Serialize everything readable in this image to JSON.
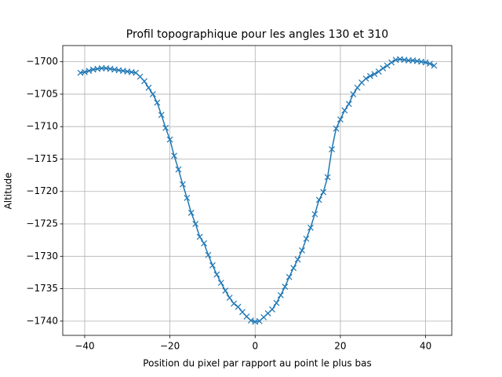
{
  "chart_data": {
    "type": "line",
    "title": "Profil topographique pour les angles 130 et 310",
    "xlabel": "Position du pixel par rapport au point le plus bas",
    "ylabel": "Altitude",
    "color": "#1f77b4",
    "marker": "x",
    "grid": true,
    "x": [
      -41,
      -40,
      -39,
      -38,
      -37,
      -36,
      -35,
      -34,
      -33,
      -32,
      -31,
      -30,
      -29,
      -28,
      -27,
      -26,
      -25,
      -24,
      -23,
      -22,
      -21,
      -20,
      -19,
      -18,
      -17,
      -16,
      -15,
      -14,
      -13,
      -12,
      -11,
      -10,
      -9,
      -8,
      -7,
      -6,
      -5,
      -4,
      -3,
      -2,
      -1,
      0,
      1,
      2,
      3,
      4,
      5,
      6,
      7,
      8,
      9,
      10,
      11,
      12,
      13,
      14,
      15,
      16,
      17,
      18,
      19,
      20,
      21,
      22,
      23,
      24,
      25,
      26,
      27,
      28,
      29,
      30,
      31,
      32,
      33,
      34,
      35,
      36,
      37,
      38,
      39,
      40,
      41,
      42
    ],
    "values": [
      -1701.7,
      -1701.6,
      -1701.4,
      -1701.2,
      -1701.1,
      -1701.0,
      -1701.0,
      -1701.1,
      -1701.2,
      -1701.3,
      -1701.4,
      -1701.5,
      -1701.6,
      -1701.7,
      -1702.3,
      -1703.0,
      -1704.0,
      -1705.0,
      -1706.3,
      -1708.2,
      -1710.2,
      -1712.0,
      -1714.5,
      -1716.6,
      -1718.9,
      -1721.0,
      -1723.3,
      -1725.0,
      -1727.0,
      -1728.0,
      -1729.8,
      -1731.4,
      -1732.8,
      -1734.1,
      -1735.3,
      -1736.4,
      -1737.3,
      -1737.8,
      -1738.6,
      -1739.3,
      -1739.9,
      -1740.1,
      -1740.0,
      -1739.4,
      -1738.8,
      -1738.2,
      -1737.2,
      -1736.0,
      -1734.7,
      -1733.2,
      -1731.8,
      -1730.5,
      -1729.1,
      -1727.3,
      -1725.6,
      -1723.5,
      -1721.3,
      -1720.1,
      -1717.8,
      -1713.5,
      -1710.3,
      -1708.9,
      -1707.5,
      -1706.5,
      -1705.0,
      -1704.0,
      -1703.2,
      -1702.6,
      -1702.2,
      -1701.9,
      -1701.5,
      -1701.0,
      -1700.6,
      -1700.1,
      -1699.7,
      -1699.6,
      -1699.7,
      -1699.8,
      -1699.8,
      -1699.9,
      -1700.0,
      -1700.1,
      -1700.3,
      -1700.6
    ],
    "xlim": [
      -45.15,
      46.15
    ],
    "ylim": [
      -1742.2,
      -1697.5
    ],
    "xticks": [
      {
        "value": -40,
        "label": "−40"
      },
      {
        "value": -20,
        "label": "−20"
      },
      0,
      20,
      40
    ],
    "yticks": [
      {
        "value": -1740,
        "label": "−1740"
      },
      {
        "value": -1735,
        "label": "−1735"
      },
      {
        "value": -1730,
        "label": "−1730"
      },
      {
        "value": -1725,
        "label": "−1725"
      },
      {
        "value": -1720,
        "label": "−1720"
      },
      {
        "value": -1715,
        "label": "−1715"
      },
      {
        "value": -1710,
        "label": "−1710"
      },
      {
        "value": -1705,
        "label": "−1705"
      },
      {
        "value": -1700,
        "label": "−1700"
      }
    ]
  }
}
